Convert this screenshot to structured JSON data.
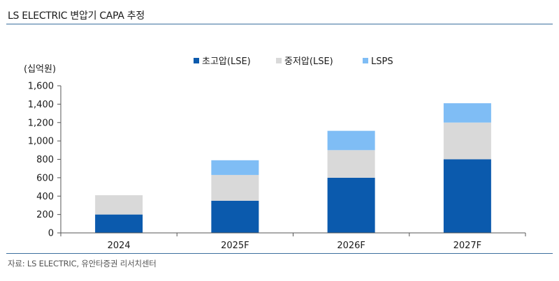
{
  "header": {
    "title": "LS ELECTRIC 변압기 CAPA 추정"
  },
  "footer": {
    "source": "자료: LS ELECTRIC, 유안타증권 리서치센터"
  },
  "chart_data": {
    "type": "bar",
    "stacked": true,
    "title": "LS ELECTRIC 변압기 CAPA 추정",
    "unit_label": "(십억원)",
    "categories": [
      "2024",
      "2025F",
      "2026F",
      "2027F"
    ],
    "series": [
      {
        "name": "초고압(LSE)",
        "values": [
          200,
          350,
          600,
          800
        ],
        "color": "#0b5aad"
      },
      {
        "name": "중저압(LSE)",
        "values": [
          210,
          280,
          300,
          400
        ],
        "color": "#d9d9d9"
      },
      {
        "name": "LSPS",
        "values": [
          0,
          160,
          210,
          210
        ],
        "color": "#7fbdf5"
      }
    ],
    "ylim": [
      0,
      1600
    ],
    "yticks": [
      "0",
      "200",
      "400",
      "600",
      "800",
      "1,000",
      "1,200",
      "1,400",
      "1,600"
    ],
    "legend_position": "top-center",
    "grid": false
  }
}
